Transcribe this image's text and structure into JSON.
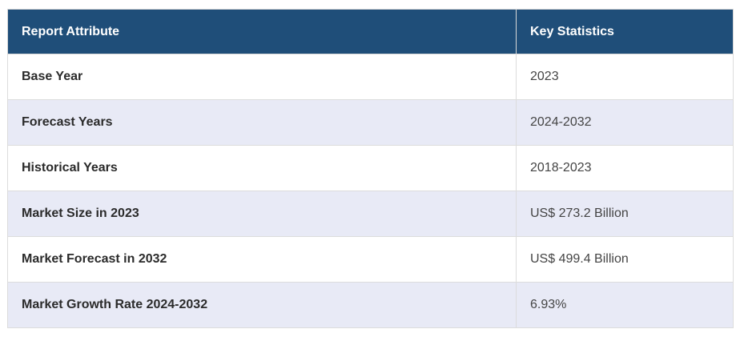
{
  "table": {
    "headers": [
      "Report Attribute",
      "Key Statistics"
    ],
    "rows": [
      {
        "attribute": "Base Year",
        "value": "2023"
      },
      {
        "attribute": "Forecast Years",
        "value": "2024-2032"
      },
      {
        "attribute": "Historical Years",
        "value": "2018-2023"
      },
      {
        "attribute": "Market Size in 2023",
        "value": "US$ 273.2 Billion"
      },
      {
        "attribute": "Market Forecast in 2032",
        "value": "US$ 499.4 Billion"
      },
      {
        "attribute": "Market Growth Rate 2024-2032",
        "value": "6.93%"
      }
    ]
  },
  "colors": {
    "header_bg": "#1f4e79",
    "header_text": "#ffffff",
    "row_alt_bg": "#e8eaf6",
    "row_bg": "#ffffff"
  }
}
